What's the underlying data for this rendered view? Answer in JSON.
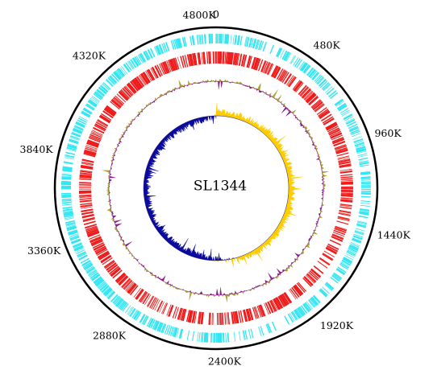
{
  "chart_data": {
    "type": "circular-genome-map",
    "genome_name": "SL1344",
    "position_labels": [
      "0",
      "480K",
      "960K",
      "1440K",
      "1920K",
      "2400K",
      "2880K",
      "3360K",
      "3840K",
      "4320K",
      "4800K"
    ],
    "position_values": [
      0,
      480000,
      960000,
      1440000,
      1920000,
      2400000,
      2880000,
      3360000,
      3840000,
      4320000,
      4800000
    ],
    "genome_length": 4878000,
    "tracks": [
      {
        "name": "outer-gene-track",
        "kind": "gene-ticks",
        "color": "#33e6f2"
      },
      {
        "name": "inner-gene-track",
        "kind": "gene-ticks",
        "color": "#ee1c1c"
      },
      {
        "name": "gc-content",
        "kind": "deviation",
        "positive_color": "#a8a030",
        "negative_color": "#8b1a8f"
      },
      {
        "name": "gc-skew",
        "kind": "deviation",
        "positive_color": "#ffcc00",
        "negative_color": "#0a0a9c"
      }
    ],
    "gc_skew_note": "positive in first half, negative in second half"
  }
}
